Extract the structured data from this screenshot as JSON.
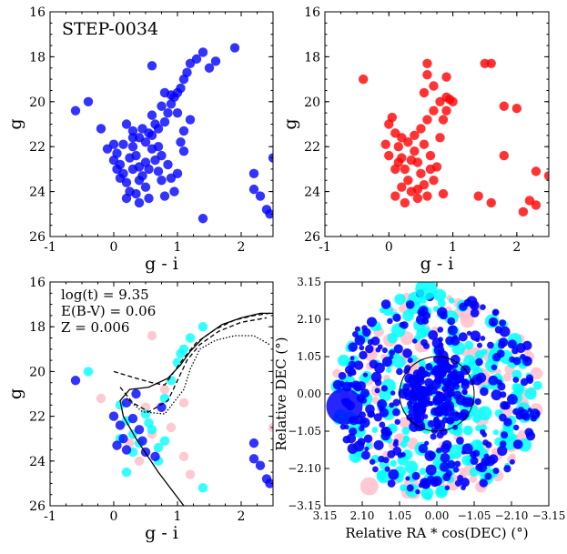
{
  "chart_data": [
    {
      "id": "cmd_blue",
      "type": "scatter",
      "title": "STEP-0034",
      "xlabel": "g - i",
      "ylabel": "g",
      "xlim": [
        -1,
        2.5
      ],
      "ylim": [
        26,
        16
      ],
      "xticks": [
        "-1",
        "0",
        "1",
        "2"
      ],
      "yticks": [
        "16",
        "18",
        "20",
        "22",
        "24",
        "26"
      ],
      "series": [
        {
          "name": "stars",
          "color": "#0000ff",
          "points": [
            [
              -0.6,
              20.4
            ],
            [
              -0.4,
              20.0
            ],
            [
              -0.2,
              21.2
            ],
            [
              0.0,
              21.9
            ],
            [
              0.05,
              22.3
            ],
            [
              0.1,
              22.8
            ],
            [
              0.15,
              23.2
            ],
            [
              0.2,
              23.6
            ],
            [
              0.25,
              24.0
            ],
            [
              0.3,
              22.0
            ],
            [
              0.35,
              22.4
            ],
            [
              0.4,
              22.9
            ],
            [
              0.45,
              23.3
            ],
            [
              0.5,
              23.8
            ],
            [
              0.55,
              24.3
            ],
            [
              0.6,
              22.1
            ],
            [
              0.65,
              22.6
            ],
            [
              0.7,
              23.1
            ],
            [
              0.75,
              23.5
            ],
            [
              0.8,
              24.2
            ],
            [
              0.2,
              21.0
            ],
            [
              0.3,
              21.3
            ],
            [
              0.4,
              21.6
            ],
            [
              0.5,
              21.8
            ],
            [
              0.6,
              21.5
            ],
            [
              0.7,
              21.2
            ],
            [
              0.8,
              20.9
            ],
            [
              0.85,
              20.5
            ],
            [
              0.9,
              20.1
            ],
            [
              0.95,
              19.8
            ],
            [
              0.8,
              19.6
            ],
            [
              0.9,
              19.7
            ],
            [
              1.0,
              19.6
            ],
            [
              1.05,
              19.4
            ],
            [
              1.1,
              19.0
            ],
            [
              1.15,
              18.7
            ],
            [
              1.2,
              18.3
            ],
            [
              1.3,
              18.1
            ],
            [
              1.4,
              17.8
            ],
            [
              1.5,
              18.5
            ],
            [
              1.6,
              18.2
            ],
            [
              1.9,
              17.6
            ],
            [
              0.6,
              18.4
            ],
            [
              1.1,
              21.3
            ],
            [
              1.2,
              20.8
            ],
            [
              1.1,
              22.2
            ],
            [
              1.0,
              23.2
            ],
            [
              1.4,
              25.2
            ],
            [
              2.2,
              23.2
            ],
            [
              2.2,
              23.9
            ],
            [
              2.3,
              24.2
            ],
            [
              2.4,
              24.8
            ],
            [
              2.5,
              22.5
            ],
            [
              2.45,
              25.0
            ],
            [
              0.3,
              23.0
            ],
            [
              0.4,
              23.5
            ],
            [
              0.35,
              24.1
            ],
            [
              0.5,
              22.7
            ],
            [
              0.25,
              22.5
            ],
            [
              0.15,
              21.9
            ],
            [
              0.05,
              23.0
            ],
            [
              0.1,
              23.4
            ],
            [
              0.45,
              21.2
            ],
            [
              0.55,
              21.4
            ],
            [
              0.65,
              21.0
            ],
            [
              0.7,
              22.0
            ],
            [
              0.75,
              22.4
            ],
            [
              0.85,
              22.8
            ],
            [
              0.9,
              23.4
            ],
            [
              0.95,
              24.0
            ],
            [
              0.6,
              20.6
            ],
            [
              0.75,
              20.2
            ],
            [
              1.0,
              20.5
            ],
            [
              1.05,
              21.8
            ],
            [
              0.2,
              24.3
            ],
            [
              0.4,
              24.5
            ],
            [
              0.55,
              23.0
            ],
            [
              0.3,
              21.6
            ],
            [
              0.0,
              22.6
            ],
            [
              -0.1,
              22.1
            ]
          ]
        }
      ]
    },
    {
      "id": "cmd_red",
      "type": "scatter",
      "title": "",
      "xlabel": "g - i",
      "ylabel": "g",
      "xlim": [
        -1,
        2.5
      ],
      "ylim": [
        26,
        16
      ],
      "xticks": [
        "-1",
        "0",
        "1",
        "2"
      ],
      "yticks": [
        "16",
        "18",
        "20",
        "22",
        "24",
        "26"
      ],
      "series": [
        {
          "name": "stars",
          "color": "#ff0000",
          "points": [
            [
              -0.4,
              19.0
            ],
            [
              0.0,
              21.0
            ],
            [
              0.05,
              20.7
            ],
            [
              0.1,
              21.4
            ],
            [
              0.15,
              22.0
            ],
            [
              0.2,
              22.5
            ],
            [
              0.25,
              23.0
            ],
            [
              0.3,
              23.5
            ],
            [
              0.35,
              24.0
            ],
            [
              0.4,
              22.2
            ],
            [
              0.45,
              22.7
            ],
            [
              0.5,
              23.2
            ],
            [
              0.55,
              23.7
            ],
            [
              0.6,
              24.2
            ],
            [
              0.3,
              21.8
            ],
            [
              0.4,
              21.5
            ],
            [
              0.5,
              21.2
            ],
            [
              0.6,
              20.8
            ],
            [
              0.7,
              20.4
            ],
            [
              0.8,
              20.0
            ],
            [
              0.9,
              19.8
            ],
            [
              0.95,
              19.9
            ],
            [
              1.0,
              20.0
            ],
            [
              0.9,
              20.4
            ],
            [
              0.85,
              20.8
            ],
            [
              0.8,
              21.6
            ],
            [
              0.6,
              18.3
            ],
            [
              0.6,
              18.8
            ],
            [
              0.55,
              19.6
            ],
            [
              0.9,
              18.9
            ],
            [
              0.7,
              19.3
            ],
            [
              1.5,
              18.3
            ],
            [
              1.6,
              18.3
            ],
            [
              1.8,
              20.2
            ],
            [
              2.0,
              20.3
            ],
            [
              1.8,
              22.4
            ],
            [
              1.4,
              24.2
            ],
            [
              1.6,
              24.5
            ],
            [
              2.2,
              24.4
            ],
            [
              2.3,
              24.6
            ],
            [
              2.1,
              24.9
            ],
            [
              2.3,
              23.1
            ],
            [
              2.5,
              23.3
            ],
            [
              0.2,
              23.8
            ],
            [
              0.1,
              24.2
            ],
            [
              0.25,
              24.5
            ],
            [
              0.45,
              24.3
            ],
            [
              0.7,
              23.5
            ],
            [
              0.75,
              22.9
            ],
            [
              0.65,
              22.4
            ],
            [
              0.55,
              21.9
            ],
            [
              0.35,
              22.6
            ],
            [
              -0.05,
              21.9
            ],
            [
              0.0,
              22.4
            ],
            [
              0.1,
              23.0
            ],
            [
              0.2,
              21.6
            ],
            [
              0.45,
              23.9
            ],
            [
              0.65,
              23.0
            ],
            [
              0.85,
              24.1
            ],
            [
              0.15,
              22.7
            ]
          ]
        }
      ]
    },
    {
      "id": "cmd_isochrone",
      "type": "scatter",
      "title": "",
      "xlabel": "g - i",
      "ylabel": "g",
      "xlim": [
        -1,
        2.5
      ],
      "ylim": [
        26,
        16
      ],
      "xticks": [
        "-1",
        "0",
        "1",
        "2"
      ],
      "yticks": [
        "16",
        "18",
        "20",
        "22",
        "24",
        "26"
      ],
      "annotations": [
        "log(t) = 9.35",
        "E(B-V) = 0.06",
        "Z = 0.006"
      ],
      "series": [
        {
          "name": "pink",
          "color": "#ffc0cb",
          "points": [
            [
              -0.2,
              21.2
            ],
            [
              0.6,
              18.4
            ],
            [
              1.1,
              21.4
            ],
            [
              1.1,
              23.8
            ],
            [
              1.2,
              24.6
            ],
            [
              0.4,
              24.0
            ],
            [
              0.25,
              23.2
            ],
            [
              0.6,
              22.8
            ],
            [
              0.9,
              22.5
            ],
            [
              2.5,
              22.5
            ],
            [
              0.8,
              20.8
            ],
            [
              0.5,
              21.6
            ]
          ]
        },
        {
          "name": "cyan",
          "color": "#00ffff",
          "points": [
            [
              -0.4,
              20.0
            ],
            [
              0.1,
              21.5
            ],
            [
              0.2,
              22.2
            ],
            [
              0.3,
              22.8
            ],
            [
              0.4,
              23.2
            ],
            [
              0.5,
              21.9
            ],
            [
              0.6,
              22.6
            ],
            [
              0.7,
              23.4
            ],
            [
              0.8,
              21.2
            ],
            [
              0.9,
              20.4
            ],
            [
              1.0,
              19.6
            ],
            [
              1.05,
              19.2
            ],
            [
              1.1,
              19.0
            ],
            [
              1.2,
              18.5
            ],
            [
              1.4,
              18.0
            ],
            [
              0.3,
              23.6
            ],
            [
              0.1,
              23.0
            ],
            [
              0.55,
              22.3
            ],
            [
              0.8,
              23.1
            ],
            [
              1.4,
              25.2
            ],
            [
              0.2,
              24.5
            ],
            [
              0.7,
              24.0
            ]
          ]
        },
        {
          "name": "blue",
          "color": "#0000ff",
          "points": [
            [
              -0.6,
              20.4
            ],
            [
              0.0,
              22.0
            ],
            [
              0.1,
              22.4
            ],
            [
              0.15,
              23.0
            ],
            [
              0.2,
              23.5
            ],
            [
              0.3,
              22.1
            ],
            [
              0.4,
              22.6
            ],
            [
              0.45,
              23.1
            ],
            [
              0.5,
              23.6
            ],
            [
              0.2,
              21.4
            ],
            [
              0.35,
              21.0
            ],
            [
              0.75,
              21.6
            ],
            [
              2.2,
              23.2
            ],
            [
              2.2,
              23.9
            ],
            [
              2.3,
              24.2
            ],
            [
              2.4,
              24.8
            ],
            [
              2.45,
              25.0
            ],
            [
              0.65,
              23.8
            ],
            [
              0.05,
              23.3
            ]
          ]
        }
      ],
      "isochrones": [
        {
          "style": "solid",
          "points": [
            [
              1.1,
              26.0
            ],
            [
              0.7,
              24.5
            ],
            [
              0.35,
              23.0
            ],
            [
              0.15,
              22.0
            ],
            [
              0.1,
              21.3
            ],
            [
              0.25,
              20.8
            ],
            [
              0.55,
              20.7
            ],
            [
              0.85,
              20.3
            ],
            [
              1.05,
              19.7
            ],
            [
              1.2,
              19.1
            ],
            [
              1.4,
              18.5
            ],
            [
              1.7,
              17.9
            ],
            [
              2.0,
              17.6
            ],
            [
              2.3,
              17.4
            ],
            [
              2.5,
              17.4
            ]
          ]
        },
        {
          "style": "dashed",
          "points": [
            [
              0.0,
              20.0
            ],
            [
              0.35,
              20.3
            ],
            [
              0.6,
              20.5
            ],
            [
              0.8,
              20.6
            ],
            [
              0.95,
              20.0
            ],
            [
              1.1,
              19.4
            ],
            [
              1.3,
              18.7
            ],
            [
              1.6,
              18.1
            ],
            [
              1.9,
              17.7
            ],
            [
              2.2,
              17.5
            ],
            [
              2.45,
              17.4
            ]
          ]
        },
        {
          "style": "dashed",
          "points": [
            [
              0.1,
              20.7
            ],
            [
              0.3,
              21.4
            ],
            [
              0.55,
              21.8
            ],
            [
              0.85,
              21.3
            ],
            [
              1.0,
              20.4
            ],
            [
              1.15,
              19.5
            ],
            [
              1.35,
              18.8
            ],
            [
              1.65,
              18.2
            ],
            [
              2.0,
              17.8
            ],
            [
              2.4,
              17.6
            ]
          ]
        },
        {
          "style": "dotted",
          "points": [
            [
              0.2,
              21.2
            ],
            [
              0.45,
              21.8
            ],
            [
              0.8,
              21.9
            ],
            [
              1.1,
              20.8
            ],
            [
              1.2,
              19.9
            ],
            [
              1.35,
              19.0
            ],
            [
              1.6,
              18.6
            ],
            [
              1.9,
              18.4
            ],
            [
              2.2,
              18.4
            ],
            [
              2.45,
              18.8
            ]
          ]
        }
      ]
    },
    {
      "id": "sky_map",
      "type": "scatter",
      "title": "",
      "xlabel": "Relative RA * cos(DEC) (°)",
      "ylabel": "Relative DEC (°)",
      "xlim": [
        3.15,
        -3.15
      ],
      "ylim": [
        -3.15,
        3.15
      ],
      "xticks": [
        "3.15",
        "2.10",
        "1.05",
        "0.00",
        "−1.05",
        "−2.10",
        "−3.15"
      ],
      "yticks": [
        "3.15",
        "2.10",
        "1.05",
        "0.00",
        "−1.05",
        "−2.10",
        "−3.15"
      ],
      "field_radius_deg": 2.9,
      "inner_circle_radius_deg": 1.05,
      "series": [
        {
          "name": "pink",
          "color": "#ffc0cb",
          "count": 120
        },
        {
          "name": "cyan",
          "color": "#00ffff",
          "count": 220
        },
        {
          "name": "blue",
          "color": "#0000ff",
          "count": 420
        }
      ],
      "large_markers": [
        {
          "color": "#00ffff",
          "x": 0.3,
          "y": 2.95,
          "size": 12
        },
        {
          "color": "#0000ff",
          "x": 2.6,
          "y": -0.35,
          "size": 20
        },
        {
          "color": "#ffc0cb",
          "x": 1.9,
          "y": -2.6,
          "size": 10
        }
      ]
    }
  ]
}
